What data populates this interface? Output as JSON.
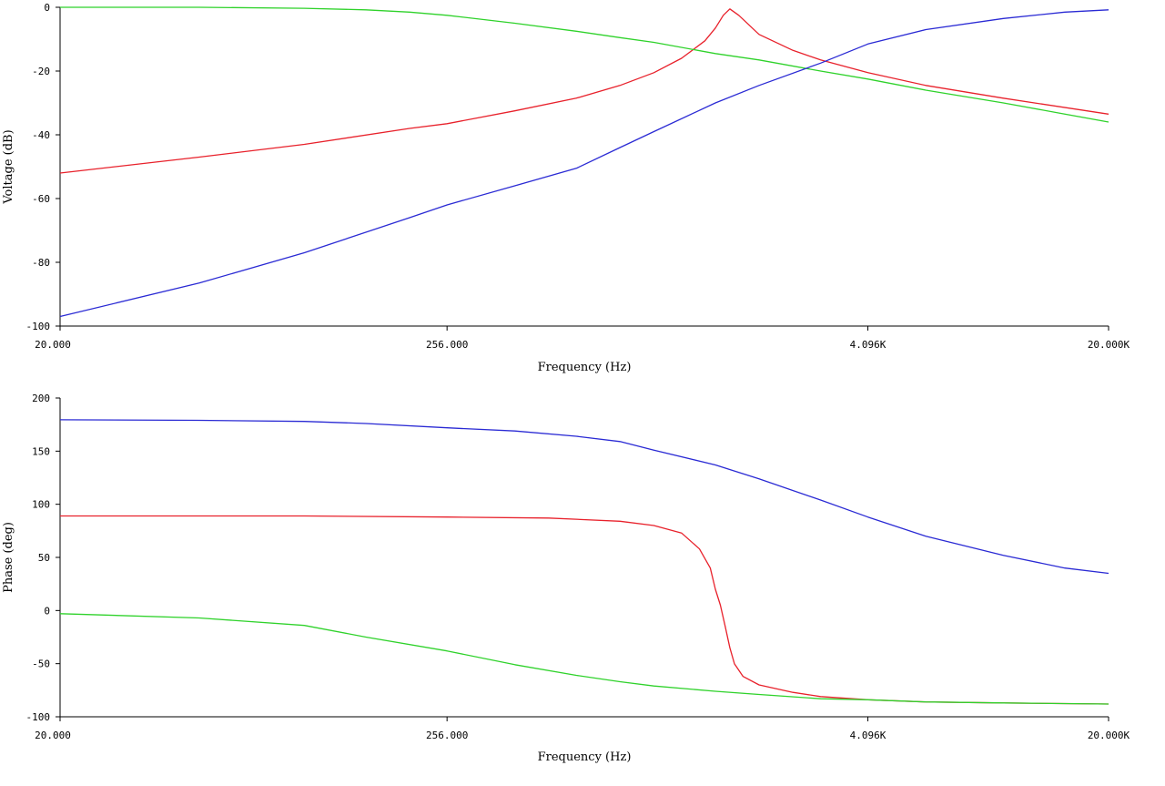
{
  "colors": {
    "background": "#ffffff",
    "axis": "#000000",
    "red": "#e8212b",
    "green": "#2fd22b",
    "blue": "#2a2ad4"
  },
  "chart_data": [
    {
      "type": "line",
      "xlabel": "Frequency (Hz)",
      "ylabel": "Voltage (dB)",
      "xscale": "log",
      "xlim": [
        20,
        20000
      ],
      "ylim": [
        -100,
        0
      ],
      "xticks": [
        20,
        256,
        4096,
        20000
      ],
      "xtick_labels": [
        "20.000",
        "256.000",
        "4.096K",
        "20.000K"
      ],
      "yticks": [
        0,
        -20,
        -40,
        -60,
        -80,
        -100
      ],
      "ytick_labels": [
        "0",
        "-20",
        "-40",
        "-60",
        "-80",
        "-100"
      ],
      "grid": false,
      "series": [
        {
          "color": "#e8212b",
          "x": [
            20,
            50,
            100,
            200,
            256,
            400,
            600,
            800,
            1000,
            1200,
            1400,
            1500,
            1580,
            1650,
            1750,
            2000,
            2500,
            3000,
            4096,
            6000,
            10000,
            20000
          ],
          "y": [
            -52,
            -47,
            -43,
            -38,
            -36.5,
            -32.5,
            -28.5,
            -24.5,
            -20.5,
            -16,
            -10.5,
            -6.5,
            -2.5,
            -0.5,
            -2.5,
            -8.5,
            -13.5,
            -16.5,
            -20.5,
            -24.5,
            -28.5,
            -33.5
          ]
        },
        {
          "color": "#2fd22b",
          "x": [
            20,
            50,
            100,
            150,
            200,
            256,
            400,
            600,
            800,
            1000,
            1500,
            2000,
            3000,
            4096,
            6000,
            10000,
            20000
          ],
          "y": [
            0,
            0,
            -0.3,
            -0.8,
            -1.5,
            -2.5,
            -5,
            -7.5,
            -9.5,
            -11,
            -14.5,
            -16.5,
            -20,
            -22.5,
            -26,
            -30,
            -36
          ]
        },
        {
          "color": "#2a2ad4",
          "x": [
            20,
            50,
            100,
            200,
            256,
            400,
            600,
            800,
            1000,
            1500,
            2000,
            3000,
            4096,
            6000,
            10000,
            15000,
            20000
          ],
          "y": [
            -97,
            -86.5,
            -77,
            -66,
            -62,
            -56,
            -50.5,
            -44,
            -39,
            -30,
            -24.5,
            -17.5,
            -11.5,
            -7,
            -3.5,
            -1.5,
            -0.8
          ]
        }
      ]
    },
    {
      "type": "line",
      "xlabel": "Frequency (Hz)",
      "ylabel": "Phase (deg)",
      "xscale": "log",
      "xlim": [
        20,
        20000
      ],
      "ylim": [
        -100,
        200
      ],
      "xticks": [
        20,
        256,
        4096,
        20000
      ],
      "xtick_labels": [
        "20.000",
        "256.000",
        "4.096K",
        "20.000K"
      ],
      "yticks": [
        200,
        150,
        100,
        50,
        0,
        -50,
        -100
      ],
      "ytick_labels": [
        "200",
        "150",
        "100",
        "50",
        "0",
        "-50",
        "-100"
      ],
      "grid": false,
      "series": [
        {
          "color": "#2a2ad4",
          "x": [
            20,
            50,
            100,
            150,
            256,
            400,
            600,
            800,
            1000,
            1500,
            2000,
            3000,
            4096,
            6000,
            10000,
            15000,
            20000
          ],
          "y": [
            179.5,
            179,
            178,
            176,
            172,
            169,
            164,
            159,
            151,
            137,
            124,
            104,
            88,
            70,
            52,
            40,
            35
          ]
        },
        {
          "color": "#e8212b",
          "x": [
            20,
            50,
            100,
            256,
            500,
            800,
            1000,
            1200,
            1350,
            1450,
            1500,
            1550,
            1600,
            1650,
            1700,
            1800,
            2000,
            2500,
            3000,
            4096,
            6000,
            10000,
            20000
          ],
          "y": [
            89,
            89,
            89,
            88,
            87,
            84,
            80,
            73,
            58,
            40,
            20,
            5,
            -15,
            -35,
            -50,
            -62,
            -70,
            -77,
            -81,
            -84,
            -86,
            -87,
            -88
          ]
        },
        {
          "color": "#2fd22b",
          "x": [
            20,
            50,
            100,
            150,
            256,
            400,
            600,
            800,
            1000,
            1500,
            2000,
            3000,
            4096,
            6000,
            10000,
            20000
          ],
          "y": [
            -3,
            -7,
            -14,
            -25,
            -38,
            -51,
            -61,
            -67,
            -71,
            -76,
            -79,
            -83,
            -84,
            -86,
            -87,
            -88
          ]
        }
      ]
    }
  ]
}
